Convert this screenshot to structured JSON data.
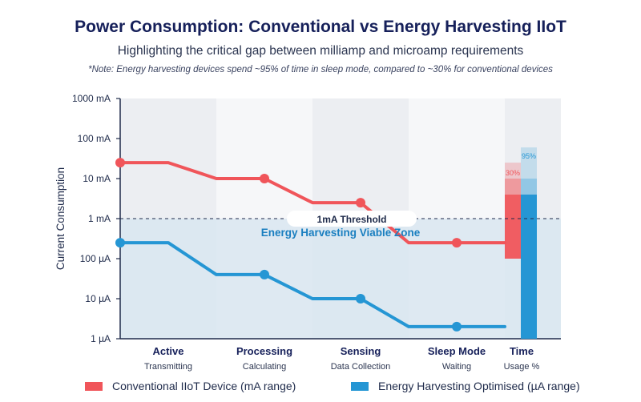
{
  "header": {
    "title": "Power Consumption: Conventional vs Energy Harvesting IIoT",
    "subtitle": "Highlighting the critical gap between milliamp and microamp requirements",
    "note": "*Note: Energy harvesting devices spend ~95% of time in sleep mode, compared to ~30% for conventional devices"
  },
  "colors": {
    "conventional": "#f0555a",
    "harvesting": "#2596d4",
    "zone_fill": "#d9e6f1",
    "stripe": "#eef0f4",
    "threshold": "#1e2a4a"
  },
  "chart_data": {
    "type": "line",
    "ylabel": "Current Consumption",
    "yscale": "log",
    "y_unit": "A",
    "ylim": [
      1e-06,
      1
    ],
    "y_ticks": [
      {
        "value": 1,
        "label": "1000 mA"
      },
      {
        "value": 0.1,
        "label": "100 mA"
      },
      {
        "value": 0.01,
        "label": "10 mA"
      },
      {
        "value": 0.001,
        "label": "1 mA"
      },
      {
        "value": 0.0001,
        "label": "100 µA"
      },
      {
        "value": 1e-05,
        "label": "10 µA"
      },
      {
        "value": 1e-06,
        "label": "1 µA"
      }
    ],
    "categories": [
      {
        "label": "Active",
        "sublabel": "Transmitting"
      },
      {
        "label": "Processing",
        "sublabel": "Calculating"
      },
      {
        "label": "Sensing",
        "sublabel": "Data Collection"
      },
      {
        "label": "Sleep Mode",
        "sublabel": "Waiting"
      },
      {
        "label": "Time",
        "sublabel": "Usage %"
      }
    ],
    "series": [
      {
        "name": "Conventional IIoT Device (mA range)",
        "points": [
          {
            "x": 0,
            "y": 0.025,
            "marker": true
          },
          {
            "x": 0.5,
            "y": 0.025,
            "marker": false
          },
          {
            "x": 1,
            "y": 0.01,
            "marker": false
          },
          {
            "x": 1.5,
            "y": 0.01,
            "marker": true
          },
          {
            "x": 2,
            "y": 0.0025,
            "marker": false
          },
          {
            "x": 2.5,
            "y": 0.0025,
            "marker": true
          },
          {
            "x": 3,
            "y": 0.00025,
            "marker": false
          },
          {
            "x": 3.5,
            "y": 0.00025,
            "marker": true
          },
          {
            "x": 4,
            "y": 0.00025,
            "marker": false
          }
        ]
      },
      {
        "name": "Energy Harvesting Optimised (µA range)",
        "points": [
          {
            "x": 0,
            "y": 0.00025,
            "marker": true
          },
          {
            "x": 0.5,
            "y": 0.00025,
            "marker": false
          },
          {
            "x": 1,
            "y": 4e-05,
            "marker": false
          },
          {
            "x": 1.5,
            "y": 4e-05,
            "marker": true
          },
          {
            "x": 2,
            "y": 1e-05,
            "marker": false
          },
          {
            "x": 2.5,
            "y": 1e-05,
            "marker": true
          },
          {
            "x": 3,
            "y": 2e-06,
            "marker": false
          },
          {
            "x": 3.5,
            "y": 2e-06,
            "marker": true
          },
          {
            "x": 4,
            "y": 2e-06,
            "marker": false
          }
        ]
      }
    ],
    "threshold": {
      "value": 0.001,
      "label": "1mA Threshold"
    },
    "zone": {
      "label": "Energy Harvesting Viable Zone",
      "from": 1e-06,
      "to": 0.001
    },
    "usage_bars": [
      {
        "series": "Conventional IIoT Device (mA range)",
        "percent": 30,
        "label": "30%",
        "low": 0.0001,
        "high": 0.025
      },
      {
        "series": "Energy Harvesting Optimised (µA range)",
        "percent": 95,
        "label": "95%",
        "low": 1e-06,
        "high": 0.06
      }
    ],
    "legend_position": "bottom"
  }
}
